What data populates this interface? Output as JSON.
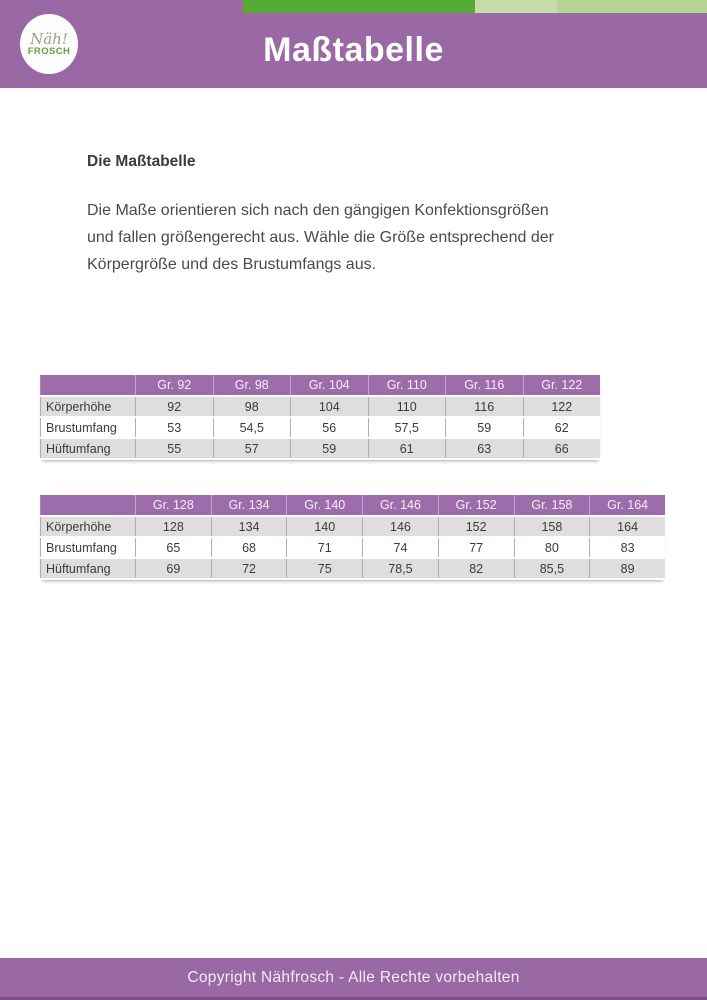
{
  "header": {
    "title": "Maßtabelle",
    "logo": {
      "script_text": "Näh!",
      "brand_text": "FROSCH"
    }
  },
  "content": {
    "heading": "Die Maßtabelle",
    "paragraph_lines": [
      "Die Maße orientieren sich nach den gängigen Konfektionsgrößen",
      "und fallen größengerecht aus. Wähle die Größe entsprechend der",
      "Körpergröße und des Brustumfangs aus."
    ]
  },
  "tables": [
    {
      "columns": [
        "",
        "Gr. 92",
        "Gr. 98",
        "Gr. 104",
        "Gr. 110",
        "Gr. 116",
        "Gr. 122"
      ],
      "rows": [
        {
          "label": "Körperhöhe",
          "values": [
            "92",
            "98",
            "104",
            "110",
            "116",
            "122"
          ]
        },
        {
          "label": "Brustumfang",
          "values": [
            "53",
            "54,5",
            "56",
            "57,5",
            "59",
            "62"
          ]
        },
        {
          "label": "Hüftumfang",
          "values": [
            "55",
            "57",
            "59",
            "61",
            "63",
            "66"
          ]
        }
      ]
    },
    {
      "columns": [
        "",
        "Gr. 128",
        "Gr. 134",
        "Gr. 140",
        "Gr. 146",
        "Gr. 152",
        "Gr. 158",
        "Gr. 164"
      ],
      "rows": [
        {
          "label": "Körperhöhe",
          "values": [
            "128",
            "134",
            "140",
            "146",
            "152",
            "158",
            "164"
          ]
        },
        {
          "label": "Brustumfang",
          "values": [
            "65",
            "68",
            "71",
            "74",
            "77",
            "80",
            "83"
          ]
        },
        {
          "label": "Hüftumfang",
          "values": [
            "69",
            "72",
            "75",
            "78,5",
            "82",
            "85,5",
            "89"
          ]
        }
      ]
    }
  ],
  "footer": {
    "copyright": "Copyright Nähfrosch - Alle Rechte vorbehalten"
  },
  "colors": {
    "purple": "#9a68a4",
    "table_header_purple": "#9d6dab",
    "dark_green": "#56a933",
    "light_green_1": "#c7dcab",
    "light_green_2": "#b5d393",
    "row_gray": "#dfdddf",
    "footer_bottom_edge": "#7a5284"
  }
}
